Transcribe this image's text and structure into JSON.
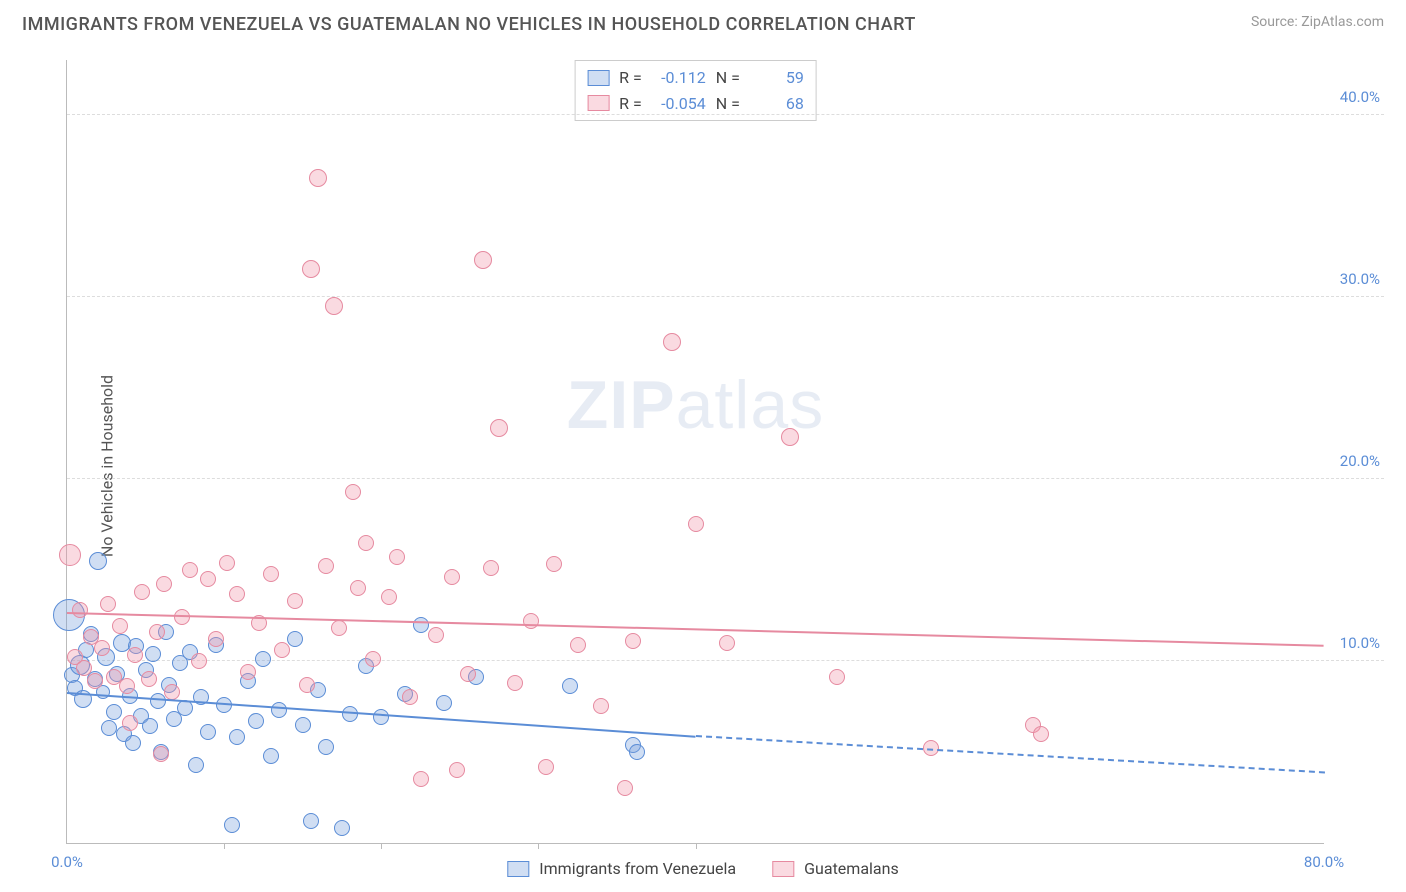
{
  "header": {
    "title": "IMMIGRANTS FROM VENEZUELA VS GUATEMALAN NO VEHICLES IN HOUSEHOLD CORRELATION CHART",
    "source": "Source: ZipAtlas.com"
  },
  "watermark": {
    "zip": "ZIP",
    "atlas": "atlas"
  },
  "chart": {
    "type": "scatter",
    "y_label": "No Vehicles in Household",
    "xlim": [
      0,
      80
    ],
    "ylim": [
      0,
      43
    ],
    "x_ticks": [
      {
        "v": 0,
        "l": "0.0%"
      },
      {
        "v": 80,
        "l": "80.0%"
      }
    ],
    "x_subticks": [
      10,
      20,
      30,
      40
    ],
    "y_ticks": [
      {
        "v": 10,
        "l": "10.0%"
      },
      {
        "v": 20,
        "l": "20.0%"
      },
      {
        "v": 30,
        "l": "30.0%"
      },
      {
        "v": 40,
        "l": "40.0%"
      }
    ],
    "grid_color": "#dddddd",
    "tick_label_color": "#5b8dd6",
    "axis_color": "#bbbbbb",
    "background_color": "#ffffff",
    "series": [
      {
        "name": "Immigrants from Venezuela",
        "fill": "rgba(120,160,220,0.35)",
        "stroke": "#5b8dd6",
        "R": "-0.112",
        "N": "59",
        "trend": {
          "y0": 8.2,
          "x1": 40,
          "y1": 5.8,
          "x_extend": 80,
          "y_extend": 3.8
        },
        "points": [
          {
            "x": 0.1,
            "y": 12.5,
            "r": 16
          },
          {
            "x": 0.3,
            "y": 9.2,
            "r": 8
          },
          {
            "x": 0.5,
            "y": 8.5,
            "r": 8
          },
          {
            "x": 0.8,
            "y": 9.8,
            "r": 10
          },
          {
            "x": 1.2,
            "y": 10.6,
            "r": 8
          },
          {
            "x": 1.0,
            "y": 7.9,
            "r": 9
          },
          {
            "x": 1.5,
            "y": 11.5,
            "r": 8
          },
          {
            "x": 1.8,
            "y": 9.0,
            "r": 8
          },
          {
            "x": 2.0,
            "y": 15.5,
            "r": 9
          },
          {
            "x": 2.3,
            "y": 8.3,
            "r": 7
          },
          {
            "x": 2.5,
            "y": 10.2,
            "r": 9
          },
          {
            "x": 2.7,
            "y": 6.3,
            "r": 8
          },
          {
            "x": 3.0,
            "y": 7.2,
            "r": 8
          },
          {
            "x": 3.2,
            "y": 9.3,
            "r": 8
          },
          {
            "x": 3.5,
            "y": 11.0,
            "r": 9
          },
          {
            "x": 3.6,
            "y": 6.0,
            "r": 8
          },
          {
            "x": 4.0,
            "y": 8.1,
            "r": 8
          },
          {
            "x": 4.2,
            "y": 5.5,
            "r": 8
          },
          {
            "x": 4.4,
            "y": 10.8,
            "r": 8
          },
          {
            "x": 4.7,
            "y": 7.0,
            "r": 8
          },
          {
            "x": 5.0,
            "y": 9.5,
            "r": 8
          },
          {
            "x": 5.3,
            "y": 6.4,
            "r": 8
          },
          {
            "x": 5.5,
            "y": 10.4,
            "r": 8
          },
          {
            "x": 5.8,
            "y": 7.8,
            "r": 8
          },
          {
            "x": 6.0,
            "y": 5.0,
            "r": 8
          },
          {
            "x": 6.3,
            "y": 11.6,
            "r": 8
          },
          {
            "x": 6.5,
            "y": 8.7,
            "r": 8
          },
          {
            "x": 6.8,
            "y": 6.8,
            "r": 8
          },
          {
            "x": 7.2,
            "y": 9.9,
            "r": 8
          },
          {
            "x": 7.5,
            "y": 7.4,
            "r": 8
          },
          {
            "x": 7.8,
            "y": 10.5,
            "r": 8
          },
          {
            "x": 8.2,
            "y": 4.3,
            "r": 8
          },
          {
            "x": 8.5,
            "y": 8.0,
            "r": 8
          },
          {
            "x": 9.0,
            "y": 6.1,
            "r": 8
          },
          {
            "x": 9.5,
            "y": 10.9,
            "r": 8
          },
          {
            "x": 10.0,
            "y": 7.6,
            "r": 8
          },
          {
            "x": 10.5,
            "y": 1.0,
            "r": 8
          },
          {
            "x": 10.8,
            "y": 5.8,
            "r": 8
          },
          {
            "x": 11.5,
            "y": 8.9,
            "r": 8
          },
          {
            "x": 12.0,
            "y": 6.7,
            "r": 8
          },
          {
            "x": 12.5,
            "y": 10.1,
            "r": 8
          },
          {
            "x": 13.0,
            "y": 4.8,
            "r": 8
          },
          {
            "x": 13.5,
            "y": 7.3,
            "r": 8
          },
          {
            "x": 14.5,
            "y": 11.2,
            "r": 8
          },
          {
            "x": 15.0,
            "y": 6.5,
            "r": 8
          },
          {
            "x": 15.5,
            "y": 1.2,
            "r": 8
          },
          {
            "x": 16.0,
            "y": 8.4,
            "r": 8
          },
          {
            "x": 16.5,
            "y": 5.3,
            "r": 8
          },
          {
            "x": 17.5,
            "y": 0.8,
            "r": 8
          },
          {
            "x": 18.0,
            "y": 7.1,
            "r": 8
          },
          {
            "x": 19.0,
            "y": 9.7,
            "r": 8
          },
          {
            "x": 20.0,
            "y": 6.9,
            "r": 8
          },
          {
            "x": 21.5,
            "y": 8.2,
            "r": 8
          },
          {
            "x": 22.5,
            "y": 12.0,
            "r": 8
          },
          {
            "x": 24.0,
            "y": 7.7,
            "r": 8
          },
          {
            "x": 26.0,
            "y": 9.1,
            "r": 8
          },
          {
            "x": 32.0,
            "y": 8.6,
            "r": 8
          },
          {
            "x": 36.0,
            "y": 5.4,
            "r": 8
          },
          {
            "x": 36.3,
            "y": 5.0,
            "r": 8
          }
        ]
      },
      {
        "name": "Guatemalans",
        "fill": "rgba(240,150,170,0.35)",
        "stroke": "#e68aa0",
        "R": "-0.054",
        "N": "68",
        "trend": {
          "y0": 12.6,
          "x1": 80,
          "y1": 10.8
        },
        "points": [
          {
            "x": 0.2,
            "y": 15.8,
            "r": 11
          },
          {
            "x": 0.5,
            "y": 10.2,
            "r": 8
          },
          {
            "x": 0.8,
            "y": 12.8,
            "r": 8
          },
          {
            "x": 1.1,
            "y": 9.6,
            "r": 8
          },
          {
            "x": 1.5,
            "y": 11.3,
            "r": 8
          },
          {
            "x": 1.8,
            "y": 8.9,
            "r": 8
          },
          {
            "x": 2.2,
            "y": 10.7,
            "r": 8
          },
          {
            "x": 2.6,
            "y": 13.1,
            "r": 8
          },
          {
            "x": 3.0,
            "y": 9.1,
            "r": 8
          },
          {
            "x": 3.4,
            "y": 11.9,
            "r": 8
          },
          {
            "x": 3.8,
            "y": 8.6,
            "r": 8
          },
          {
            "x": 4.3,
            "y": 10.3,
            "r": 8
          },
          {
            "x": 4.8,
            "y": 13.8,
            "r": 8
          },
          {
            "x": 5.2,
            "y": 9.0,
            "r": 8
          },
          {
            "x": 5.7,
            "y": 11.6,
            "r": 8
          },
          {
            "x": 6.2,
            "y": 14.2,
            "r": 8
          },
          {
            "x": 6.7,
            "y": 8.3,
            "r": 8
          },
          {
            "x": 7.3,
            "y": 12.4,
            "r": 8
          },
          {
            "x": 7.8,
            "y": 15.0,
            "r": 8
          },
          {
            "x": 8.4,
            "y": 10.0,
            "r": 8
          },
          {
            "x": 9.0,
            "y": 14.5,
            "r": 8
          },
          {
            "x": 9.5,
            "y": 11.2,
            "r": 8
          },
          {
            "x": 10.2,
            "y": 15.4,
            "r": 8
          },
          {
            "x": 10.8,
            "y": 13.7,
            "r": 8
          },
          {
            "x": 11.5,
            "y": 9.4,
            "r": 8
          },
          {
            "x": 12.2,
            "y": 12.1,
            "r": 8
          },
          {
            "x": 13.0,
            "y": 14.8,
            "r": 8
          },
          {
            "x": 13.7,
            "y": 10.6,
            "r": 8
          },
          {
            "x": 14.5,
            "y": 13.3,
            "r": 8
          },
          {
            "x": 15.3,
            "y": 8.7,
            "r": 8
          },
          {
            "x": 16.0,
            "y": 36.5,
            "r": 9
          },
          {
            "x": 15.5,
            "y": 31.5,
            "r": 9
          },
          {
            "x": 16.5,
            "y": 15.2,
            "r": 8
          },
          {
            "x": 17.0,
            "y": 29.5,
            "r": 9
          },
          {
            "x": 17.3,
            "y": 11.8,
            "r": 8
          },
          {
            "x": 18.2,
            "y": 19.3,
            "r": 8
          },
          {
            "x": 18.5,
            "y": 14.0,
            "r": 8
          },
          {
            "x": 19.0,
            "y": 16.5,
            "r": 8
          },
          {
            "x": 19.5,
            "y": 10.1,
            "r": 8
          },
          {
            "x": 20.5,
            "y": 13.5,
            "r": 8
          },
          {
            "x": 21.0,
            "y": 15.7,
            "r": 8
          },
          {
            "x": 21.8,
            "y": 8.0,
            "r": 8
          },
          {
            "x": 22.5,
            "y": 3.5,
            "r": 8
          },
          {
            "x": 23.5,
            "y": 11.4,
            "r": 8
          },
          {
            "x": 24.5,
            "y": 14.6,
            "r": 8
          },
          {
            "x": 24.8,
            "y": 4.0,
            "r": 8
          },
          {
            "x": 25.5,
            "y": 9.3,
            "r": 8
          },
          {
            "x": 26.5,
            "y": 32.0,
            "r": 9
          },
          {
            "x": 27.0,
            "y": 15.1,
            "r": 8
          },
          {
            "x": 27.5,
            "y": 22.8,
            "r": 9
          },
          {
            "x": 28.5,
            "y": 8.8,
            "r": 8
          },
          {
            "x": 29.5,
            "y": 12.2,
            "r": 8
          },
          {
            "x": 30.5,
            "y": 4.2,
            "r": 8
          },
          {
            "x": 31.0,
            "y": 15.3,
            "r": 8
          },
          {
            "x": 32.5,
            "y": 10.9,
            "r": 8
          },
          {
            "x": 34.0,
            "y": 7.5,
            "r": 8
          },
          {
            "x": 35.5,
            "y": 3.0,
            "r": 8
          },
          {
            "x": 36.0,
            "y": 11.1,
            "r": 8
          },
          {
            "x": 38.5,
            "y": 27.5,
            "r": 9
          },
          {
            "x": 40.0,
            "y": 17.5,
            "r": 8
          },
          {
            "x": 42.0,
            "y": 11.0,
            "r": 8
          },
          {
            "x": 46.0,
            "y": 22.3,
            "r": 9
          },
          {
            "x": 49.0,
            "y": 9.1,
            "r": 8
          },
          {
            "x": 55.0,
            "y": 5.2,
            "r": 8
          },
          {
            "x": 61.5,
            "y": 6.5,
            "r": 8
          },
          {
            "x": 62.0,
            "y": 6.0,
            "r": 8
          },
          {
            "x": 4.0,
            "y": 6.6,
            "r": 8
          },
          {
            "x": 6.0,
            "y": 4.9,
            "r": 8
          }
        ]
      }
    ],
    "legend_top": {
      "r_label": "R =",
      "n_label": "N ="
    },
    "legend_bottom_labels": [
      "Immigrants from Venezuela",
      "Guatemalans"
    ]
  }
}
